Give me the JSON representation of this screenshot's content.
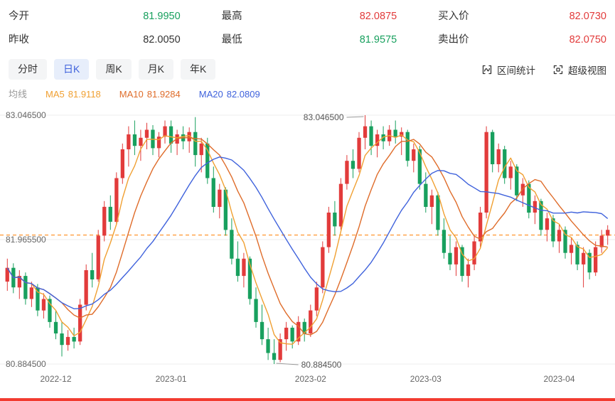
{
  "quote": {
    "rows": [
      [
        {
          "label": "今开",
          "value": "81.9950",
          "state": "down"
        },
        {
          "label": "最高",
          "value": "82.0875",
          "state": "up"
        },
        {
          "label": "买入价",
          "value": "82.0730",
          "state": "up"
        }
      ],
      [
        {
          "label": "昨收",
          "value": "82.0050",
          "state": "flat"
        },
        {
          "label": "最低",
          "value": "81.9575",
          "state": "down"
        },
        {
          "label": "卖出价",
          "value": "82.0750",
          "state": "up"
        }
      ]
    ]
  },
  "tabs": {
    "items": [
      {
        "label": "分时",
        "active": false
      },
      {
        "label": "日K",
        "active": true
      },
      {
        "label": "周K",
        "active": false
      },
      {
        "label": "月K",
        "active": false
      },
      {
        "label": "年K",
        "active": false
      }
    ]
  },
  "tools": {
    "range_stats": "区间统计",
    "super_view": "超级视图"
  },
  "ma_legend": {
    "title": "均线",
    "items": [
      {
        "name": "MA5",
        "value": "81.9118"
      },
      {
        "name": "MA10",
        "value": "81.9284"
      },
      {
        "name": "MA20",
        "value": "82.0809"
      }
    ]
  },
  "chart_data": {
    "type": "candlestick",
    "y_min": 80.8845,
    "y_max": 83.0465,
    "y_ticks": [
      {
        "label": "83.046500",
        "price": 83.0465
      },
      {
        "label": "81.965500",
        "price": 81.9655
      },
      {
        "label": "80.884500",
        "price": 80.8845
      }
    ],
    "x_ticks": [
      {
        "label": "2022-12",
        "index": 8
      },
      {
        "label": "2023-01",
        "index": 27
      },
      {
        "label": "2023-02",
        "index": 50
      },
      {
        "label": "2023-03",
        "index": 69
      },
      {
        "label": "2023-04",
        "index": 91
      }
    ],
    "dash_line_price": 82.005,
    "high_annotation": {
      "label": "83.046500",
      "index": 59
    },
    "low_annotation": {
      "label": "80.884500",
      "index": 44
    },
    "ma_periods": [
      5,
      10,
      20
    ],
    "colors": {
      "up": "#e23b3b",
      "down": "#18a05e",
      "ma5": "#f0a032",
      "ma10": "#df6c2a",
      "ma20": "#3f62dc",
      "dash": "#ff7e00",
      "grid": "#ececec",
      "axis_text": "#666666",
      "annotation_line": "#999999"
    },
    "candles": [
      [
        81.6,
        81.8,
        81.52,
        81.72
      ],
      [
        81.72,
        81.76,
        81.5,
        81.55
      ],
      [
        81.55,
        81.7,
        81.45,
        81.65
      ],
      [
        81.65,
        81.68,
        81.4,
        81.45
      ],
      [
        81.45,
        81.6,
        81.38,
        81.55
      ],
      [
        81.55,
        81.58,
        81.3,
        81.35
      ],
      [
        81.35,
        81.5,
        81.28,
        81.45
      ],
      [
        81.45,
        81.48,
        81.2,
        81.25
      ],
      [
        81.25,
        81.35,
        81.1,
        81.15
      ],
      [
        81.15,
        81.25,
        80.95,
        81.05
      ],
      [
        81.05,
        81.18,
        81.0,
        81.12
      ],
      [
        81.12,
        81.2,
        81.02,
        81.08
      ],
      [
        81.08,
        81.45,
        81.05,
        81.4
      ],
      [
        81.4,
        81.75,
        81.35,
        81.7
      ],
      [
        81.7,
        81.85,
        81.55,
        81.62
      ],
      [
        81.62,
        82.05,
        81.6,
        82.0
      ],
      [
        82.0,
        82.3,
        81.95,
        82.25
      ],
      [
        82.25,
        82.35,
        82.05,
        82.12
      ],
      [
        82.12,
        82.55,
        82.1,
        82.5
      ],
      [
        82.5,
        82.8,
        82.45,
        82.75
      ],
      [
        82.75,
        82.95,
        82.6,
        82.88
      ],
      [
        82.88,
        83.0,
        82.7,
        82.78
      ],
      [
        82.78,
        82.92,
        82.65,
        82.85
      ],
      [
        82.85,
        82.98,
        82.75,
        82.92
      ],
      [
        82.92,
        82.96,
        82.7,
        82.76
      ],
      [
        82.76,
        82.9,
        82.68,
        82.86
      ],
      [
        82.86,
        83.0,
        82.8,
        82.95
      ],
      [
        82.95,
        83.0,
        82.72,
        82.8
      ],
      [
        82.8,
        82.92,
        82.7,
        82.88
      ],
      [
        82.88,
        82.95,
        82.75,
        82.82
      ],
      [
        82.82,
        82.94,
        82.72,
        82.9
      ],
      [
        82.9,
        83.03,
        82.6,
        82.7
      ],
      [
        82.7,
        82.85,
        82.55,
        82.8
      ],
      [
        82.8,
        82.85,
        82.45,
        82.5
      ],
      [
        82.5,
        82.6,
        82.2,
        82.25
      ],
      [
        82.25,
        82.45,
        82.15,
        82.4
      ],
      [
        82.4,
        82.42,
        82.0,
        82.05
      ],
      [
        82.05,
        82.15,
        81.75,
        81.8
      ],
      [
        81.8,
        81.95,
        81.6,
        81.65
      ],
      [
        81.65,
        81.85,
        81.55,
        81.8
      ],
      [
        81.8,
        81.82,
        81.4,
        81.45
      ],
      [
        81.45,
        81.55,
        81.2,
        81.25
      ],
      [
        81.25,
        81.4,
        81.05,
        81.1
      ],
      [
        81.1,
        81.2,
        80.92,
        80.98
      ],
      [
        80.98,
        81.1,
        80.8845,
        80.92
      ],
      [
        80.92,
        81.15,
        80.9,
        81.1
      ],
      [
        81.1,
        81.25,
        81.0,
        81.2
      ],
      [
        81.2,
        81.22,
        81.02,
        81.08
      ],
      [
        81.08,
        81.3,
        81.05,
        81.25
      ],
      [
        81.25,
        81.28,
        81.08,
        81.15
      ],
      [
        81.15,
        81.4,
        81.12,
        81.35
      ],
      [
        81.35,
        81.6,
        81.3,
        81.55
      ],
      [
        81.55,
        81.95,
        81.5,
        81.9
      ],
      [
        81.9,
        82.25,
        81.85,
        82.2
      ],
      [
        82.2,
        82.3,
        82.0,
        82.08
      ],
      [
        82.08,
        82.5,
        82.05,
        82.45
      ],
      [
        82.45,
        82.7,
        82.4,
        82.65
      ],
      [
        82.65,
        82.75,
        82.5,
        82.58
      ],
      [
        82.58,
        82.9,
        82.55,
        82.85
      ],
      [
        82.85,
        83.0465,
        82.75,
        82.95
      ],
      [
        82.95,
        83.0,
        82.7,
        82.78
      ],
      [
        82.78,
        82.92,
        82.68,
        82.88
      ],
      [
        82.88,
        82.95,
        82.75,
        82.82
      ],
      [
        82.82,
        82.96,
        82.78,
        82.92
      ],
      [
        82.92,
        83.0,
        82.8,
        82.86
      ],
      [
        82.86,
        82.94,
        82.7,
        82.9
      ],
      [
        82.9,
        82.92,
        82.6,
        82.65
      ],
      [
        82.65,
        82.8,
        82.55,
        82.75
      ],
      [
        82.75,
        82.78,
        82.4,
        82.45
      ],
      [
        82.45,
        82.55,
        82.2,
        82.25
      ],
      [
        82.25,
        82.4,
        82.1,
        82.35
      ],
      [
        82.35,
        82.38,
        82.0,
        82.05
      ],
      [
        82.05,
        82.15,
        81.8,
        81.85
      ],
      [
        81.85,
        82.0,
        81.7,
        81.75
      ],
      [
        81.75,
        81.95,
        81.65,
        81.9
      ],
      [
        81.9,
        81.92,
        81.6,
        81.65
      ],
      [
        81.65,
        81.8,
        81.55,
        81.75
      ],
      [
        81.75,
        82.0,
        81.7,
        81.95
      ],
      [
        81.95,
        82.25,
        81.9,
        82.2
      ],
      [
        82.2,
        82.95,
        82.15,
        82.9
      ],
      [
        82.9,
        82.92,
        82.55,
        82.62
      ],
      [
        82.62,
        82.8,
        82.55,
        82.75
      ],
      [
        82.75,
        82.78,
        82.45,
        82.5
      ],
      [
        82.5,
        82.65,
        82.4,
        82.6
      ],
      [
        82.6,
        82.62,
        82.3,
        82.35
      ],
      [
        82.35,
        82.5,
        82.25,
        82.45
      ],
      [
        82.45,
        82.48,
        82.15,
        82.2
      ],
      [
        82.2,
        82.35,
        82.1,
        82.3
      ],
      [
        82.3,
        82.32,
        82.0,
        82.05
      ],
      [
        82.05,
        82.2,
        81.95,
        82.15
      ],
      [
        82.15,
        82.18,
        81.9,
        81.95
      ],
      [
        81.95,
        82.1,
        81.85,
        82.05
      ],
      [
        82.05,
        82.08,
        81.8,
        81.85
      ],
      [
        81.85,
        81.98,
        81.75,
        81.92
      ],
      [
        81.92,
        81.95,
        81.7,
        81.75
      ],
      [
        81.75,
        81.9,
        81.55,
        81.85
      ],
      [
        81.85,
        81.88,
        81.62,
        81.68
      ],
      [
        81.68,
        81.95,
        81.65,
        81.9
      ],
      [
        81.9,
        82.05,
        81.85,
        82.0
      ],
      [
        82.0,
        82.09,
        81.92,
        82.05
      ]
    ]
  }
}
